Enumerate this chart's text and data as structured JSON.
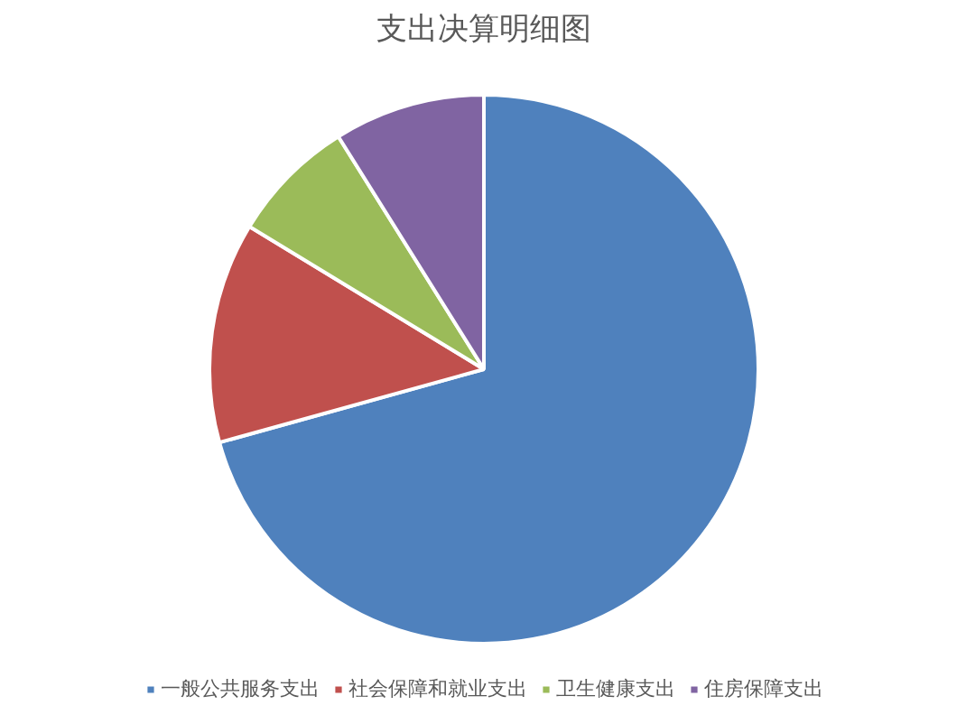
{
  "chart_data": {
    "type": "pie",
    "title": "支出决算明细图",
    "categories": [
      "一般公共服务支出",
      "社会保障和就业支出",
      "卫生健康支出",
      "住房保障支出"
    ],
    "values": [
      70.7,
      13.0,
      7.4,
      8.9
    ],
    "colors": [
      "#4f81bd",
      "#c0504d",
      "#9bbb59",
      "#8064a2"
    ],
    "legend": "bottom"
  }
}
